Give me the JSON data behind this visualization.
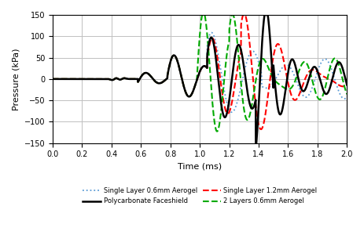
{
  "ylabel": "Pressure (kPa)",
  "xlabel": "Time (ms)",
  "xlim": [
    0,
    2
  ],
  "ylim": [
    -150,
    150
  ],
  "yticks": [
    -150,
    -100,
    -50,
    0,
    50,
    100,
    150
  ],
  "xticks": [
    0,
    0.2,
    0.4,
    0.6,
    0.8,
    1.0,
    1.2,
    1.4,
    1.6,
    1.8,
    2.0
  ],
  "legend": [
    {
      "label": "Single Layer 0.6mm Aerogel",
      "color": "#5B9BD5",
      "ls": "dotted",
      "lw": 1.3
    },
    {
      "label": "Single Layer 1.2mm Aerogel",
      "color": "#FF0000",
      "ls": "dashed",
      "lw": 1.5
    },
    {
      "label": "Polycarbonate Faceshield",
      "color": "#000000",
      "ls": "solid",
      "lw": 1.8
    },
    {
      "label": "2 Layers 0.6mm Aerogel",
      "color": "#00AA00",
      "ls": "dashed",
      "lw": 1.5
    }
  ],
  "figsize": [
    4.64,
    3.0
  ],
  "dpi": 100,
  "background": "#ffffff",
  "grid_color": "#C0C0C0",
  "grid_lw": 0.7
}
